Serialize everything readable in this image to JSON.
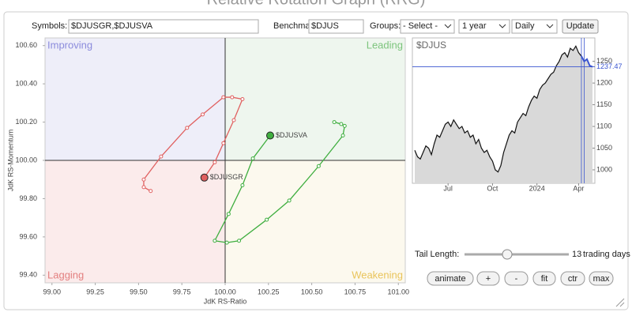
{
  "title": "Relative Rotation Graph (RRG)",
  "controls": {
    "symbols_label": "Symbols:",
    "symbols": "$DJUSGR,$DJUSVA",
    "benchmark_label": "Benchmark:",
    "benchmark": "$DJUS",
    "groups_label": "Groups:",
    "groups": "- Select -",
    "period": "1 year",
    "frequency": "Daily",
    "update": "Update"
  },
  "chart_data": [
    {
      "type": "rrg",
      "x_label": "JdK RS-Ratio",
      "y_label": "JdK RS-Momentum",
      "xlim": [
        98.96,
        101.04
      ],
      "ylim": [
        99.36,
        100.64
      ],
      "center": [
        100,
        100
      ],
      "xticks": [
        {
          "value": 99,
          "label": "99.00"
        },
        99.25,
        {
          "value": 99.5,
          "label": "99.50"
        },
        99.75,
        {
          "value": 100,
          "label": "100.00"
        },
        100.25,
        {
          "value": 100.5,
          "label": "100.50"
        },
        100.75,
        {
          "value": 101,
          "label": "101.00"
        }
      ],
      "yticks": [
        {
          "value": 99.4,
          "label": "99.40"
        },
        {
          "value": 99.6,
          "label": "99.60"
        },
        {
          "value": 99.8,
          "label": "99.80"
        },
        {
          "value": 100,
          "label": "100.00"
        },
        {
          "value": 100.2,
          "label": "100.20"
        },
        {
          "value": 100.4,
          "label": "100.40"
        },
        {
          "value": 100.6,
          "label": "100.60"
        }
      ],
      "quadrants": [
        {
          "name": "Improving",
          "color": "#8b8bdc",
          "background": "#eeeef9",
          "corner": "top-left"
        },
        {
          "name": "Leading",
          "color": "#7cc47c",
          "background": "#eef6ee",
          "corner": "top-right"
        },
        {
          "name": "Lagging",
          "color": "#e37f7f",
          "background": "#fbebeb",
          "corner": "bottom-left"
        },
        {
          "name": "Weakening",
          "color": "#e9c45a",
          "background": "#fcf9ee",
          "corner": "bottom-right"
        }
      ],
      "series": [
        {
          "name": "$DJUSGR",
          "color": "#e06060",
          "x": [
            99.57,
            99.53,
            99.53,
            99.63,
            99.78,
            99.87,
            99.99,
            100.04,
            100.1,
            100.05,
            99.99,
            99.94,
            99.88
          ],
          "values": [
            99.84,
            99.86,
            99.9,
            100.02,
            100.17,
            100.24,
            100.33,
            100.33,
            100.32,
            100.21,
            100.09,
            99.99,
            99.91
          ]
        },
        {
          "name": "$DJUSVA",
          "color": "#3fae3f",
          "x": [
            100.63,
            100.67,
            100.69,
            100.68,
            100.54,
            100.37,
            100.24,
            100.08,
            100.01,
            99.94,
            100.02,
            100.1,
            100.16,
            100.26
          ],
          "values": [
            100.2,
            100.19,
            100.18,
            100.13,
            99.97,
            99.79,
            99.69,
            99.58,
            99.57,
            99.58,
            99.72,
            99.87,
            100.01,
            100.13
          ]
        }
      ]
    },
    {
      "type": "line",
      "title": "$DJUS",
      "color": "#111111",
      "area_color": "#d9d9d9",
      "highlight_color": "#3a55d0",
      "xlim": [
        0,
        64
      ],
      "ylim": [
        969,
        1304
      ],
      "xticks": [
        {
          "value": 12,
          "label": "Jul"
        },
        {
          "value": 28,
          "label": "Oct"
        },
        {
          "value": 44,
          "label": "2024"
        },
        {
          "value": 59,
          "label": "Apr"
        }
      ],
      "yticks": [
        1000,
        1050,
        1100,
        1150,
        1200,
        1250
      ],
      "values": [
        1045,
        1030,
        1025,
        1040,
        1055,
        1050,
        1035,
        1060,
        1080,
        1075,
        1090,
        1105,
        1110,
        1100,
        1115,
        1105,
        1095,
        1100,
        1085,
        1090,
        1075,
        1080,
        1060,
        1070,
        1050,
        1040,
        1045,
        1030,
        1020,
        1000,
        995,
        1010,
        1040,
        1060,
        1080,
        1090,
        1085,
        1110,
        1120,
        1130,
        1125,
        1145,
        1160,
        1170,
        1165,
        1185,
        1195,
        1200,
        1210,
        1220,
        1225,
        1240,
        1250,
        1265,
        1270,
        1260,
        1280,
        1275,
        1285,
        1270,
        1262,
        1250,
        1255,
        1240,
        1237.47
      ]
    }
  ],
  "tail": {
    "label": "Tail Length:",
    "value": 13,
    "unit": "trading days"
  },
  "buttons": [
    "animate",
    "+",
    "-",
    "fit",
    "ctr",
    "max"
  ]
}
